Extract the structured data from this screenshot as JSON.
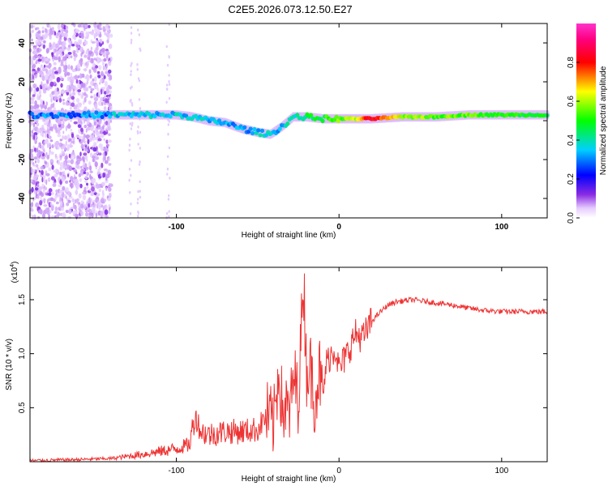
{
  "title": "C2E5.2026.073.12.50.E27",
  "chart_data": [
    {
      "type": "heatmap",
      "xlabel": "Height of straight line (km)",
      "ylabel": "Frequency (Hz)",
      "xlim": [
        -190,
        128
      ],
      "ylim": [
        -50,
        50
      ],
      "xticks": [
        -100,
        0,
        100
      ],
      "xtick_labels": [
        "-100",
        "0",
        "100"
      ],
      "yticks": [
        -40,
        -20,
        0,
        20,
        40
      ],
      "ytick_labels": [
        "-40",
        "-20",
        "0",
        "20",
        "40"
      ],
      "colorbar": {
        "label": "Normalized spectral amplitude",
        "range": [
          0,
          1
        ],
        "ticks": [
          0.0,
          0.2,
          0.4,
          0.6,
          0.8
        ],
        "tick_labels": [
          "0.0",
          "0.2",
          "0.4",
          "0.6",
          "0.8"
        ],
        "colormap": "rainbow (white-violet-blue-cyan-green-yellow-red-magenta)"
      },
      "ridge": {
        "x": [
          -140,
          -120,
          -100,
          -90,
          -80,
          -70,
          -60,
          -50,
          -42,
          -35,
          -28,
          -20,
          -10,
          0,
          10,
          20,
          40,
          60,
          80,
          100,
          128
        ],
        "freq": [
          3,
          3,
          3,
          2,
          0,
          -1,
          -4,
          -6,
          -7,
          -3,
          2,
          2,
          1,
          1,
          1,
          1,
          2,
          2,
          3,
          3,
          3
        ],
        "amplitude": [
          0.35,
          0.35,
          0.35,
          0.35,
          0.35,
          0.35,
          0.3,
          0.35,
          0.35,
          0.35,
          0.4,
          0.45,
          0.5,
          0.55,
          0.6,
          0.85,
          0.6,
          0.55,
          0.55,
          0.5,
          0.45
        ]
      },
      "noise_region_x": [
        -190,
        -140
      ]
    },
    {
      "type": "line",
      "xlabel": "Height of straight line (km)",
      "ylabel": "SNR (10 * v/v)",
      "scale_label": "(x10",
      "scale_exponent": "4",
      "xlim": [
        -190,
        128
      ],
      "ylim": [
        0,
        1.8
      ],
      "xticks": [
        -100,
        0,
        100
      ],
      "xtick_labels": [
        "-100",
        "0",
        "100"
      ],
      "yticks": [
        0.5,
        1.0,
        1.5
      ],
      "ytick_labels": [
        "0.5",
        "1.0",
        "1.5"
      ],
      "series": [
        {
          "name": "SNR",
          "color": "#ee3333",
          "x": [
            -190,
            -160,
            -140,
            -120,
            -100,
            -92,
            -90,
            -88,
            -85,
            -80,
            -70,
            -60,
            -50,
            -45,
            -40,
            -37,
            -35,
            -30,
            -28,
            -25,
            -23,
            -22,
            -20,
            -18,
            -15,
            -12,
            -10,
            -8,
            -5,
            -2,
            0,
            5,
            10,
            15,
            20,
            25,
            30,
            35,
            40,
            45,
            50,
            60,
            70,
            80,
            90,
            100,
            110,
            120,
            128
          ],
          "y": [
            0.01,
            0.02,
            0.03,
            0.07,
            0.12,
            0.16,
            0.32,
            0.42,
            0.28,
            0.25,
            0.28,
            0.28,
            0.3,
            0.42,
            0.35,
            0.88,
            0.5,
            0.45,
            0.78,
            0.6,
            1.25,
            1.78,
            0.85,
            0.9,
            0.6,
            0.85,
            0.55,
            0.9,
            1.0,
            1.05,
            0.85,
            1.0,
            1.18,
            1.15,
            1.3,
            1.38,
            1.45,
            1.48,
            1.49,
            1.5,
            1.49,
            1.47,
            1.45,
            1.42,
            1.4,
            1.39,
            1.39,
            1.39,
            1.39
          ]
        }
      ]
    }
  ]
}
